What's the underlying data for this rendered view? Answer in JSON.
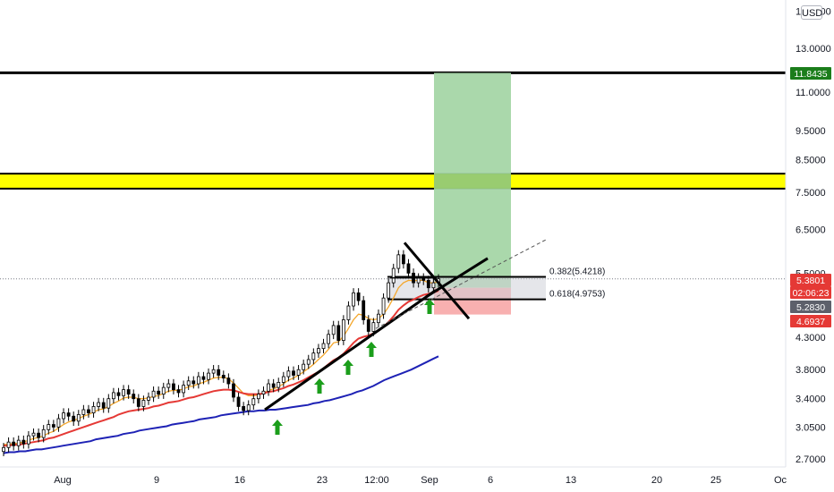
{
  "chart_data": {
    "type": "candlestick",
    "scale": "log",
    "grid": false,
    "y_ticks": [
      "15.0000",
      "13.0000",
      "11.0000",
      "9.5000",
      "8.5000",
      "7.5000",
      "6.5000",
      "5.5000",
      "4.3000",
      "3.8000",
      "3.4000",
      "3.0500",
      "2.7000"
    ],
    "y_tick_values": [
      15.0,
      13.0,
      11.0,
      9.5,
      8.5,
      7.5,
      6.5,
      5.5,
      4.3,
      3.8,
      3.4,
      3.05,
      2.7
    ],
    "x_ticks": [
      "Aug",
      "9",
      "16",
      "23",
      "12:00",
      "Sep",
      "6",
      "13",
      "20",
      "25",
      "Oc"
    ],
    "unit": "USD",
    "price_tags": [
      {
        "label": "11.8435",
        "value": 11.8435,
        "color": "#1b7d1b"
      },
      {
        "label": "5.3801",
        "value": 5.3801,
        "color": "#e53935"
      },
      {
        "label": "02:06:23",
        "value": 5.26,
        "color": "#e53935"
      },
      {
        "label": "5.2830",
        "value": 5.05,
        "color": "#5d606b"
      },
      {
        "label": "4.6937",
        "value": 4.6937,
        "color": "#e53935"
      }
    ],
    "fib_levels": [
      {
        "label": "0.382(5.4218)",
        "value": 5.4218
      },
      {
        "label": "0.618(4.9753)",
        "value": 4.9753
      }
    ],
    "horizontal_levels": [
      11.8435
    ],
    "resistance_zone": {
      "low": 7.6,
      "high": 8.05,
      "color": "#ffff00"
    },
    "target_zone": {
      "low": 5.2,
      "high": 11.8435,
      "color": "#a5d6a7"
    },
    "stop_zone": {
      "low": 4.6937,
      "high": 5.2,
      "color": "#f8b0b0"
    },
    "current_price": 5.3801,
    "series": [
      {
        "type": "candles",
        "close": [
          2.82,
          2.88,
          2.84,
          2.9,
          2.86,
          2.95,
          2.98,
          2.93,
          3.02,
          3.08,
          3.05,
          3.15,
          3.22,
          3.18,
          3.12,
          3.2,
          3.26,
          3.22,
          3.3,
          3.35,
          3.28,
          3.4,
          3.48,
          3.44,
          3.52,
          3.46,
          3.4,
          3.3,
          3.38,
          3.42,
          3.5,
          3.46,
          3.55,
          3.6,
          3.52,
          3.48,
          3.58,
          3.64,
          3.6,
          3.7,
          3.66,
          3.75,
          3.8,
          3.72,
          3.68,
          3.6,
          3.42,
          3.3,
          3.25,
          3.32,
          3.4,
          3.46,
          3.5,
          3.6,
          3.55,
          3.62,
          3.7,
          3.78,
          3.72,
          3.8,
          3.88,
          3.95,
          4.05,
          4.12,
          4.2,
          4.35,
          4.5,
          4.25,
          4.6,
          4.85,
          5.1,
          4.95,
          4.6,
          4.4,
          4.55,
          4.7,
          5.0,
          5.3,
          5.6,
          5.9,
          5.7,
          5.5,
          5.3,
          5.4,
          5.35,
          5.2,
          5.3,
          5.38
        ]
      },
      {
        "type": "ma",
        "name": "",
        "color": "#f4a62a",
        "values": [
          2.85,
          2.86,
          2.86,
          2.87,
          2.88,
          2.9,
          2.92,
          2.93,
          2.95,
          2.98,
          3.0,
          3.04,
          3.08,
          3.11,
          3.13,
          3.15,
          3.18,
          3.2,
          3.23,
          3.26,
          3.27,
          3.3,
          3.34,
          3.37,
          3.41,
          3.42,
          3.42,
          3.4,
          3.4,
          3.41,
          3.43,
          3.44,
          3.47,
          3.5,
          3.51,
          3.51,
          3.53,
          3.56,
          3.57,
          3.6,
          3.62,
          3.65,
          3.68,
          3.69,
          3.69,
          3.67,
          3.61,
          3.54,
          3.47,
          3.44,
          3.44,
          3.45,
          3.47,
          3.51,
          3.53,
          3.56,
          3.6,
          3.65,
          3.68,
          3.72,
          3.77,
          3.82,
          3.88,
          3.95,
          4.02,
          4.11,
          4.21,
          4.23,
          4.32,
          4.45,
          4.6,
          4.7,
          4.68,
          4.62,
          4.6,
          4.62,
          4.7,
          4.83,
          5.0,
          5.2,
          5.3,
          5.35,
          5.34,
          5.35,
          5.35,
          5.3,
          5.3,
          5.32
        ]
      },
      {
        "type": "ma",
        "name": "",
        "color": "#e53935",
        "values": [
          2.84,
          2.84,
          2.85,
          2.85,
          2.86,
          2.87,
          2.88,
          2.89,
          2.9,
          2.92,
          2.93,
          2.95,
          2.97,
          2.99,
          3.01,
          3.03,
          3.05,
          3.07,
          3.09,
          3.11,
          3.13,
          3.15,
          3.17,
          3.2,
          3.22,
          3.24,
          3.25,
          3.26,
          3.27,
          3.28,
          3.3,
          3.31,
          3.33,
          3.35,
          3.36,
          3.37,
          3.39,
          3.41,
          3.42,
          3.44,
          3.46,
          3.48,
          3.5,
          3.51,
          3.52,
          3.52,
          3.51,
          3.49,
          3.47,
          3.46,
          3.46,
          3.46,
          3.47,
          3.49,
          3.5,
          3.52,
          3.54,
          3.57,
          3.59,
          3.62,
          3.65,
          3.69,
          3.73,
          3.77,
          3.82,
          3.88,
          3.94,
          3.98,
          4.04,
          4.12,
          4.21,
          4.28,
          4.31,
          4.33,
          4.37,
          4.41,
          4.48,
          4.56,
          4.66,
          4.78,
          4.86,
          4.93,
          4.97,
          5.02,
          5.06,
          5.08,
          5.11,
          5.14
        ]
      },
      {
        "type": "ma",
        "name": "",
        "color": "#1e22b5",
        "values": [
          2.76,
          2.77,
          2.77,
          2.78,
          2.78,
          2.79,
          2.8,
          2.8,
          2.81,
          2.82,
          2.83,
          2.84,
          2.85,
          2.86,
          2.87,
          2.88,
          2.89,
          2.91,
          2.92,
          2.93,
          2.94,
          2.95,
          2.97,
          2.98,
          2.99,
          3.01,
          3.02,
          3.03,
          3.04,
          3.05,
          3.06,
          3.08,
          3.09,
          3.1,
          3.11,
          3.12,
          3.14,
          3.15,
          3.16,
          3.17,
          3.19,
          3.2,
          3.21,
          3.22,
          3.23,
          3.24,
          3.24,
          3.25,
          3.25,
          3.26,
          3.26,
          3.27,
          3.28,
          3.29,
          3.3,
          3.31,
          3.32,
          3.34,
          3.35,
          3.37,
          3.38,
          3.4,
          3.42,
          3.44,
          3.46,
          3.49,
          3.51,
          3.54,
          3.57,
          3.61,
          3.65,
          3.68,
          3.71,
          3.74,
          3.77,
          3.8,
          3.84,
          3.88,
          3.92,
          3.96,
          4.0
        ]
      }
    ],
    "annotations": [
      {
        "type": "arrow-up",
        "color": "#1b9e1b",
        "count": 6
      },
      {
        "type": "trendline",
        "color": "#000000"
      },
      {
        "type": "cross-lines",
        "color": "#000000"
      }
    ]
  }
}
